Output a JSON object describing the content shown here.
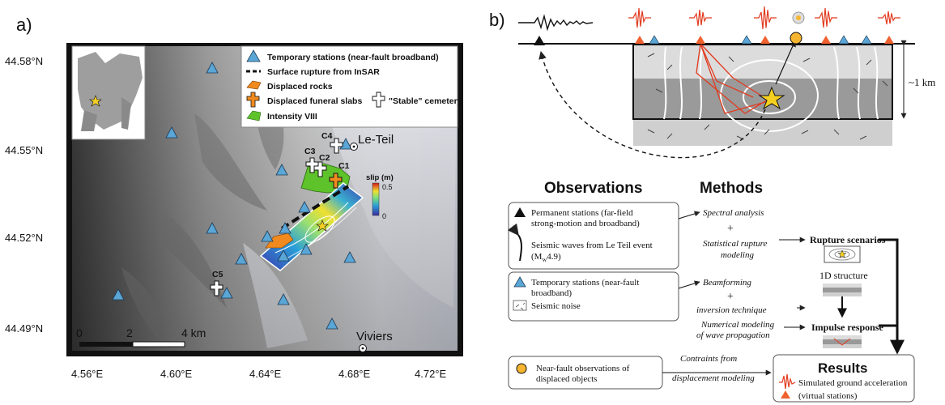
{
  "panel_a": {
    "label": "a)",
    "y_ticks": [
      "44.58°N",
      "44.55°N",
      "44.52°N",
      "44.49°N"
    ],
    "x_ticks": [
      "4.56°E",
      "4.60°E",
      "4.64°E",
      "4.68°E",
      "4.72°E"
    ],
    "scale_labels": [
      "0",
      "2",
      "4 km"
    ],
    "legend": {
      "stations": "Temporary stations (near-fault broadband)",
      "rupture": "Surface rupture from InSAR",
      "rocks": "Displaced rocks",
      "slabs": "Displaced funeral slabs",
      "cemetery": "\"Stable\" cemetery",
      "intensity": "Intensity VIII"
    },
    "places": {
      "leteil": "Le-Teil",
      "viviers": "Viviers"
    },
    "cemeteries": [
      "C1",
      "C2",
      "C3",
      "C4",
      "C5"
    ],
    "colorbar": {
      "title": "slip (m)",
      "max": "0.5",
      "min": "0"
    }
  },
  "panel_b": {
    "label": "b)",
    "depth": "~1 km",
    "headers": {
      "observations": "Observations",
      "methods": "Methods",
      "results": "Results"
    },
    "obs1_line1": "Permanent stations (far-field",
    "obs1_line2": "strong-motion and broadband)",
    "obs1b_line1": "Seismic waves from Le Teil event",
    "obs1b_line2_pre": "(M",
    "obs1b_sub": "w",
    "obs1b_line2_post": "4.9)",
    "obs2_line1": "Temporary stations (near-fault",
    "obs2_line2": "broadband)",
    "obs2b": "Seismic noise",
    "obs3_line1": "Near-fault observations of",
    "obs3_line2": "displaced objects",
    "methods": {
      "spectral": "Spectral analysis",
      "plus1": "+",
      "stat1": "Statistical rupture",
      "stat2": "modeling",
      "beam": "Beamforming",
      "plus2": "+",
      "inv": "inversion technique",
      "num1": "Numerical modeling",
      "num2": "of wave propagation",
      "contr1": "Contraints from",
      "contr2": "displacement modeling"
    },
    "outputs": {
      "rupture": "Rupture scenarios",
      "structure": "1D structure",
      "impulse": "Impulse response"
    },
    "results": {
      "accel": "Simulated ground acceleration",
      "virtual": "(virtual stations)"
    }
  }
}
